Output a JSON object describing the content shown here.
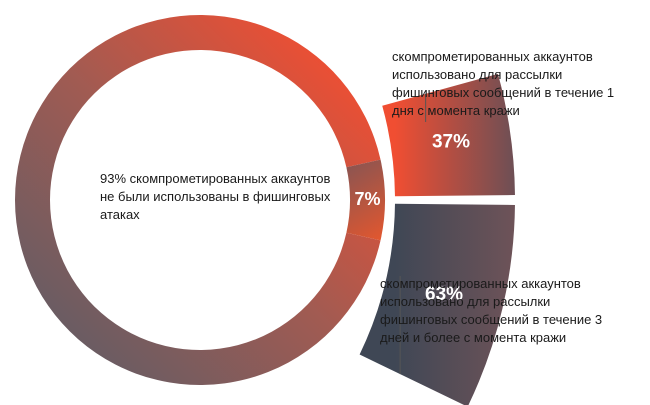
{
  "chart_data": [
    {
      "type": "donut",
      "slices": [
        {
          "label": "93% скомпрометированных аккаунтов не были использованы в фишинговых атаках",
          "value": 93
        },
        {
          "label": "7%",
          "value": 7
        }
      ]
    },
    {
      "type": "bar",
      "categories": [
        "скомпрометированных аккаунтов использовано для рассылки фишинговых сообщений в течение 1 дня с момента кражи",
        "скомпрометированных аккаунтов использовано для рассылки фишинговых сообщений в течение 3 дней и более с момента кражи"
      ],
      "values": [
        37,
        63
      ],
      "data_labels": [
        "37%",
        "63%"
      ]
    }
  ],
  "labels": {
    "center": "93% скомпрометированных аккаунтов не были использованы в фишинговых атаках",
    "small_slice": "7%",
    "upper_pct": "37%",
    "lower_pct": "63%",
    "upper_note": "скомпрометированных аккаунтов использовано для рассылки фишинговых сообщений в течение 1 дня с момента кражи",
    "lower_note": "скомпрометированных аккаунтов использовано для рассылки фишинговых сообщений в течение 3 дней и более с момента кражи"
  },
  "colors": {
    "orange": "#f04e32",
    "mauve": "#8c5c5c",
    "slate": "#404a58",
    "rust": "#d95735"
  }
}
